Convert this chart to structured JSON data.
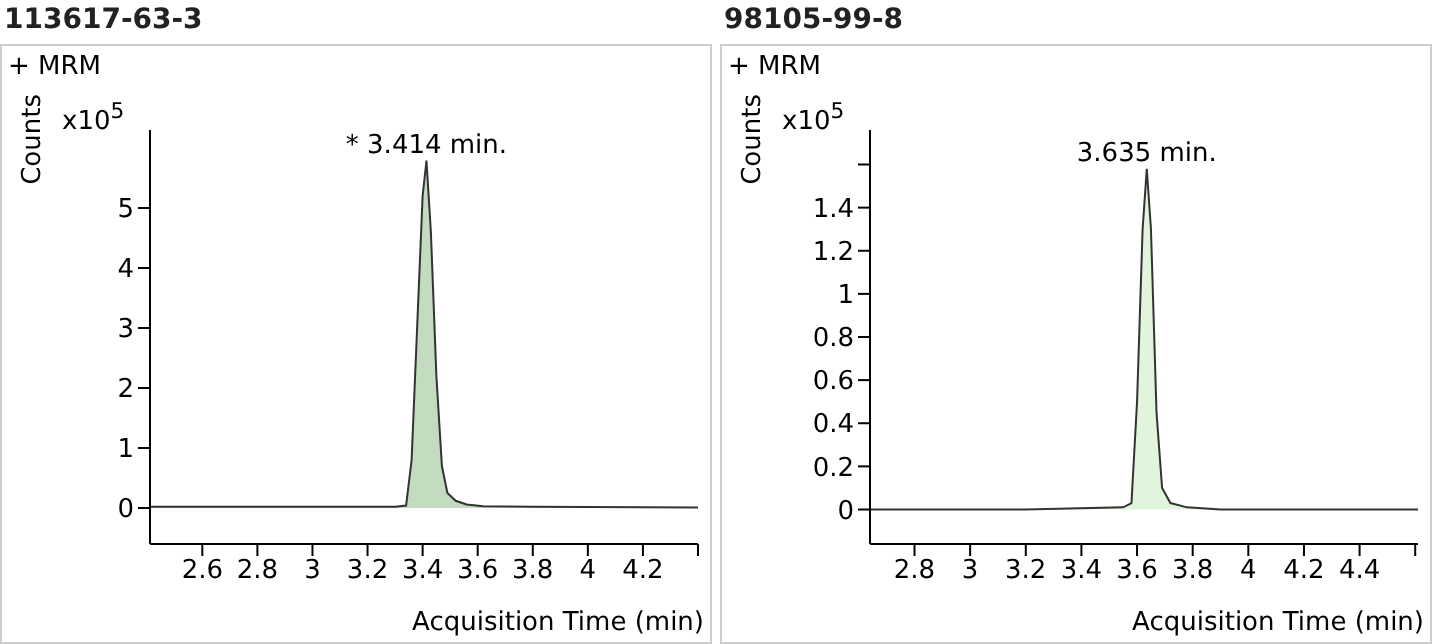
{
  "chart_data": [
    {
      "type": "area",
      "title": "113617-63-3",
      "ylabel": "Counts",
      "xlabel": "Acquisition Time (min)",
      "annotations": [
        "+ MRM",
        "x10$^{5}$",
        {
          "text": "* 3.414 min.",
          "x": 3.414,
          "y": 5.79
        }
      ],
      "series": [
        {
          "color": "#c3dcc0",
          "x": [
            2.41,
            3.0,
            3.3,
            3.34,
            3.36,
            3.38,
            3.4,
            3.414,
            3.43,
            3.45,
            3.47,
            3.49,
            3.52,
            3.56,
            3.62,
            3.8,
            4.4
          ],
          "values": [
            0.02,
            0.02,
            0.02,
            0.04,
            0.8,
            3.0,
            5.2,
            5.79,
            4.6,
            2.2,
            0.7,
            0.25,
            0.12,
            0.06,
            0.03,
            0.02,
            0.01
          ]
        }
      ],
      "xlim": [
        2.41,
        4.4
      ],
      "xticks": [
        2.6,
        2.8,
        3,
        3.2,
        3.4,
        3.6,
        3.8,
        4,
        4.2,
        {
          "value": 4.4,
          "label": null
        }
      ],
      "ylim": [
        -0.6,
        6.3
      ],
      "yticks": [
        0,
        1,
        2,
        3,
        4,
        5
      ],
      "grid": false,
      "legend": false
    },
    {
      "type": "area",
      "title": "98105-99-8",
      "ylabel": "Counts",
      "xlabel": "Acquisition Time (min)",
      "annotations": [
        "+ MRM",
        "x10$^{5}$",
        {
          "text": "3.635 min.",
          "x": 3.635,
          "y": 1.58
        }
      ],
      "series": [
        {
          "color": "#e0f5dc",
          "x": [
            2.64,
            3.2,
            3.55,
            3.58,
            3.6,
            3.62,
            3.635,
            3.65,
            3.67,
            3.69,
            3.72,
            3.78,
            3.9,
            4.61
          ],
          "values": [
            0.0,
            0.0,
            0.01,
            0.03,
            0.5,
            1.3,
            1.58,
            1.3,
            0.45,
            0.1,
            0.03,
            0.01,
            0.0,
            0.0
          ]
        }
      ],
      "xlim": [
        2.64,
        4.61
      ],
      "xticks": [
        2.8,
        3,
        3.2,
        3.4,
        3.6,
        3.8,
        4,
        4.2,
        4.4,
        {
          "value": 4.6,
          "label": null
        }
      ],
      "ylim": [
        -0.16,
        1.76
      ],
      "yticks": [
        0,
        0.2,
        0.4,
        0.6,
        0.8,
        1,
        1.2,
        1.4,
        {
          "value": 1.6,
          "label": null
        }
      ],
      "grid": false,
      "legend": false
    }
  ]
}
